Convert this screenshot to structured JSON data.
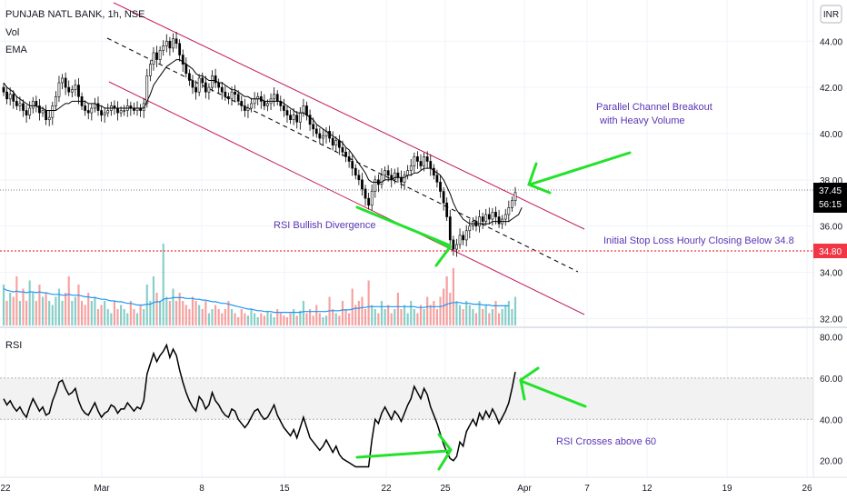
{
  "header": {
    "symbol": "PUNJAB NATL BANK, 1h, NSE",
    "vol_label": "Vol",
    "ema_label": "EMA",
    "currency": "INR",
    "rsi_label": "RSI"
  },
  "price_badge": {
    "price": "37.45",
    "countdown": "56:15"
  },
  "stop_badge": {
    "price": "34.80"
  },
  "annotations": {
    "breakout_line1": "Parallel Channel Breakout",
    "breakout_line2": "with Heavy Volume",
    "divergence": "RSI Bullish Divergence",
    "stop_loss": "Initial Stop Loss Hourly Closing Below 34.8",
    "rsi_cross": "RSI Crosses above 60"
  },
  "colors": {
    "up": "#26a69a",
    "down": "#ef5350",
    "channel": "#c2185b",
    "arrow": "#22e22a",
    "ema": "#000000",
    "vol_ma": "#2196f3",
    "stop_line": "#f23645",
    "anno": "#5b34b4"
  },
  "chart_data": [
    {
      "type": "candlestick",
      "name": "price",
      "x_ticks": [
        "22",
        "Mar",
        "8",
        "15",
        "22",
        "25",
        "Apr",
        "7",
        "12",
        "19",
        "26"
      ],
      "y_ticks": [
        "44.00",
        "42.00",
        "40.00",
        "38.00",
        "36.00",
        "34.00",
        "32.00"
      ],
      "ylim": [
        31.7,
        44.6
      ],
      "last_price": 37.45,
      "stop_loss": 34.8,
      "close": [
        41.8,
        41.5,
        41.7,
        41.4,
        41.2,
        41.3,
        41.0,
        40.8,
        41.1,
        41.4,
        41.2,
        40.9,
        41.0,
        40.6,
        40.7,
        41.2,
        41.6,
        42.2,
        42.4,
        42.0,
        41.8,
        41.9,
        42.1,
        41.6,
        41.2,
        41.0,
        40.9,
        41.1,
        41.3,
        41.0,
        40.8,
        40.9,
        41.0,
        41.2,
        41.1,
        40.9,
        41.0,
        41.0,
        41.2,
        41.1,
        41.0,
        41.1,
        41.0,
        41.3,
        42.5,
        43.0,
        43.5,
        43.2,
        43.6,
        43.8,
        44.0,
        43.7,
        44.1,
        43.9,
        43.4,
        43.0,
        42.6,
        42.3,
        42.0,
        41.8,
        42.4,
        42.2,
        41.8,
        42.0,
        42.5,
        42.2,
        42.0,
        41.8,
        41.6,
        41.5,
        41.8,
        41.7,
        41.4,
        41.2,
        41.0,
        41.1,
        41.3,
        41.5,
        41.6,
        41.4,
        41.2,
        41.3,
        41.5,
        41.7,
        41.4,
        41.2,
        41.0,
        40.8,
        40.6,
        40.8,
        40.5,
        40.9,
        41.2,
        40.8,
        40.4,
        40.2,
        40.0,
        39.8,
        39.9,
        40.1,
        39.8,
        39.5,
        39.7,
        39.4,
        39.2,
        39.0,
        38.8,
        38.5,
        38.2,
        38.0,
        37.6,
        37.2,
        36.9,
        37.5,
        38.0,
        37.8,
        38.2,
        38.4,
        38.2,
        38.0,
        38.3,
        38.1,
        37.9,
        38.2,
        38.4,
        38.6,
        39.0,
        38.8,
        38.6,
        39.0,
        38.8,
        38.5,
        38.2,
        37.9,
        37.5,
        37.0,
        36.4,
        35.4,
        35.0,
        35.2,
        35.6,
        35.4,
        35.8,
        36.0,
        36.2,
        36.0,
        36.4,
        36.2,
        36.5,
        36.3,
        36.6,
        36.4,
        36.1,
        36.3,
        36.5,
        36.8,
        37.1,
        37.45
      ],
      "ema": [
        42.2,
        42.0,
        41.9,
        41.8,
        41.6,
        41.5,
        41.4,
        41.3,
        41.2,
        41.2,
        41.2,
        41.1,
        41.1,
        41.0,
        41.0,
        41.0,
        41.0,
        41.1,
        41.2,
        41.3,
        41.3,
        41.4,
        41.4,
        41.4,
        41.4,
        41.4,
        41.3,
        41.3,
        41.3,
        41.2,
        41.2,
        41.1,
        41.1,
        41.1,
        41.1,
        41.1,
        41.1,
        41.1,
        41.1,
        41.1,
        41.1,
        41.1,
        41.1,
        41.1,
        41.4,
        41.7,
        42.1,
        42.3,
        42.5,
        42.7,
        42.9,
        43.0,
        43.1,
        43.2,
        43.2,
        43.1,
        43.0,
        42.9,
        42.8,
        42.6,
        42.5,
        42.5,
        42.4,
        42.3,
        42.3,
        42.3,
        42.2,
        42.2,
        42.1,
        42.0,
        41.9,
        41.9,
        41.8,
        41.7,
        41.6,
        41.6,
        41.5,
        41.5,
        41.5,
        41.5,
        41.4,
        41.4,
        41.4,
        41.4,
        41.4,
        41.4,
        41.3,
        41.2,
        41.1,
        41.0,
        40.9,
        40.9,
        40.9,
        40.8,
        40.7,
        40.6,
        40.4,
        40.3,
        40.2,
        40.1,
        40.0,
        39.9,
        39.8,
        39.7,
        39.6,
        39.4,
        39.3,
        39.1,
        38.9,
        38.7,
        38.5,
        38.3,
        38.0,
        37.9,
        37.9,
        37.9,
        37.9,
        38.0,
        38.0,
        38.0,
        38.1,
        38.1,
        38.1,
        38.1,
        38.2,
        38.2,
        38.3,
        38.3,
        38.4,
        38.5,
        38.5,
        38.5,
        38.4,
        38.3,
        38.2,
        38.0,
        37.7,
        37.4,
        37.0,
        36.7,
        36.5,
        36.3,
        36.2,
        36.1,
        36.1,
        36.1,
        36.1,
        36.1,
        36.1,
        36.1,
        36.2,
        36.2,
        36.2,
        36.2,
        36.2,
        36.2,
        36.3,
        36.4,
        36.5,
        36.8
      ]
    },
    {
      "type": "bar",
      "name": "volume",
      "values": [
        0.5,
        0.3,
        0.4,
        0.35,
        0.6,
        0.3,
        0.45,
        0.3,
        0.55,
        0.4,
        0.3,
        0.5,
        0.35,
        0.4,
        0.3,
        0.25,
        0.35,
        0.45,
        0.3,
        0.4,
        0.6,
        0.3,
        0.35,
        0.5,
        0.3,
        0.25,
        0.4,
        0.3,
        0.35,
        0.2,
        0.25,
        0.3,
        0.2,
        0.15,
        0.3,
        0.2,
        0.25,
        0.2,
        0.15,
        0.3,
        0.2,
        0.15,
        0.25,
        0.2,
        0.5,
        0.3,
        0.6,
        0.4,
        0.3,
        1.0,
        0.35,
        0.3,
        0.45,
        0.3,
        0.4,
        0.3,
        0.25,
        0.2,
        0.35,
        0.3,
        0.25,
        0.2,
        0.3,
        0.15,
        0.2,
        0.25,
        0.2,
        0.15,
        0.2,
        0.3,
        0.2,
        0.15,
        0.1,
        0.2,
        0.15,
        0.12,
        0.2,
        0.15,
        0.1,
        0.15,
        0.12,
        0.18,
        0.15,
        0.1,
        0.2,
        0.15,
        0.12,
        0.1,
        0.15,
        0.2,
        0.12,
        0.18,
        0.3,
        0.15,
        0.2,
        0.12,
        0.25,
        0.15,
        0.1,
        0.12,
        0.35,
        0.2,
        0.15,
        0.12,
        0.3,
        0.2,
        0.15,
        0.45,
        0.25,
        0.3,
        0.35,
        0.2,
        0.55,
        0.25,
        0.2,
        0.15,
        0.3,
        0.2,
        0.25,
        0.15,
        0.2,
        0.4,
        0.2,
        0.25,
        0.15,
        0.3,
        0.2,
        0.15,
        0.25,
        0.2,
        0.35,
        0.25,
        0.3,
        0.2,
        0.35,
        0.45,
        0.6,
        0.4,
        0.7,
        0.3,
        0.25,
        0.2,
        0.3,
        0.25,
        0.2,
        0.15,
        0.3,
        0.2,
        0.25,
        0.15,
        0.2,
        0.3,
        0.15,
        0.2,
        0.25,
        0.3,
        0.2,
        0.35
      ],
      "ma": [
        0.45,
        0.43,
        0.42,
        0.41,
        0.42,
        0.41,
        0.41,
        0.4,
        0.41,
        0.41,
        0.4,
        0.41,
        0.4,
        0.4,
        0.39,
        0.38,
        0.38,
        0.38,
        0.37,
        0.37,
        0.38,
        0.37,
        0.37,
        0.37,
        0.36,
        0.35,
        0.35,
        0.34,
        0.34,
        0.33,
        0.32,
        0.32,
        0.31,
        0.3,
        0.3,
        0.29,
        0.29,
        0.28,
        0.27,
        0.27,
        0.26,
        0.25,
        0.25,
        0.25,
        0.26,
        0.26,
        0.28,
        0.29,
        0.29,
        0.32,
        0.33,
        0.33,
        0.34,
        0.34,
        0.34,
        0.34,
        0.33,
        0.33,
        0.33,
        0.32,
        0.32,
        0.31,
        0.31,
        0.3,
        0.29,
        0.29,
        0.28,
        0.27,
        0.27,
        0.26,
        0.25,
        0.24,
        0.23,
        0.22,
        0.21,
        0.2,
        0.2,
        0.19,
        0.18,
        0.18,
        0.17,
        0.17,
        0.17,
        0.16,
        0.16,
        0.16,
        0.16,
        0.16,
        0.16,
        0.16,
        0.16,
        0.16,
        0.17,
        0.17,
        0.17,
        0.17,
        0.17,
        0.17,
        0.17,
        0.17,
        0.18,
        0.18,
        0.18,
        0.18,
        0.19,
        0.19,
        0.19,
        0.2,
        0.21,
        0.21,
        0.22,
        0.22,
        0.23,
        0.23,
        0.23,
        0.23,
        0.23,
        0.23,
        0.23,
        0.23,
        0.23,
        0.23,
        0.23,
        0.23,
        0.23,
        0.23,
        0.23,
        0.22,
        0.22,
        0.22,
        0.23,
        0.23,
        0.23,
        0.23,
        0.23,
        0.24,
        0.26,
        0.27,
        0.28,
        0.28,
        0.28,
        0.27,
        0.27,
        0.27,
        0.26,
        0.26,
        0.26,
        0.25,
        0.25,
        0.25,
        0.24,
        0.24,
        0.24,
        0.24,
        0.24,
        0.24
      ]
    },
    {
      "type": "line",
      "name": "rsi",
      "y_ticks": [
        "80.00",
        "60.00",
        "40.00",
        "20.00"
      ],
      "ylim": [
        15,
        82
      ],
      "band": [
        40,
        60
      ],
      "values": [
        50,
        47,
        49,
        46,
        44,
        46,
        43,
        41,
        46,
        50,
        47,
        44,
        46,
        42,
        43,
        49,
        53,
        58,
        59,
        55,
        52,
        53,
        55,
        49,
        45,
        43,
        42,
        45,
        48,
        44,
        41,
        43,
        44,
        47,
        46,
        43,
        45,
        45,
        48,
        46,
        44,
        46,
        45,
        49,
        62,
        67,
        72,
        68,
        71,
        73,
        76,
        70,
        74,
        71,
        64,
        58,
        53,
        49,
        46,
        44,
        51,
        49,
        45,
        47,
        53,
        49,
        47,
        44,
        42,
        41,
        45,
        44,
        40,
        38,
        36,
        38,
        41,
        44,
        45,
        42,
        40,
        41,
        44,
        47,
        42,
        39,
        36,
        34,
        32,
        35,
        31,
        36,
        41,
        36,
        31,
        29,
        27,
        25,
        27,
        30,
        27,
        24,
        27,
        23,
        21,
        20,
        19,
        18,
        17,
        17,
        17,
        17,
        17,
        30,
        40,
        38,
        43,
        46,
        43,
        40,
        44,
        42,
        39,
        43,
        47,
        50,
        56,
        53,
        50,
        55,
        52,
        46,
        42,
        38,
        33,
        28,
        24,
        21,
        20,
        22,
        29,
        27,
        34,
        37,
        40,
        37,
        43,
        40,
        44,
        41,
        45,
        42,
        38,
        41,
        44,
        48,
        55,
        63
      ]
    }
  ]
}
